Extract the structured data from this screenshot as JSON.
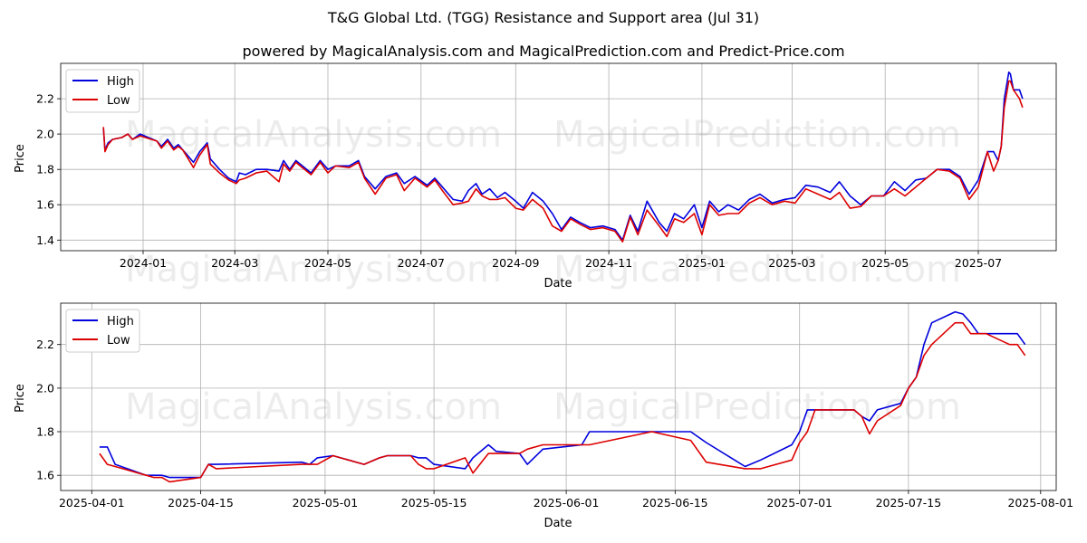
{
  "title": "T&G Global Ltd. (TGG) Resistance and Support area (Jul 31)",
  "subtitle": "powered by MagicalAnalysis.com and MagicalPrediction.com and Predict-Price.com",
  "watermarks": [
    "MagicalAnalysis.com",
    "MagicalPrediction.com"
  ],
  "colors": {
    "high": "#0000dd",
    "low": "#dd0000"
  },
  "chart_data": [
    {
      "type": "line",
      "xlabel": "Date",
      "ylabel": "Price",
      "xlim": [
        "2023-11-08",
        "2025-08-21"
      ],
      "ylim": [
        1.34,
        2.4
      ],
      "x_ticks": [
        "2024-01",
        "2024-03",
        "2024-05",
        "2024-07",
        "2024-09",
        "2024-11",
        "2025-01",
        "2025-03",
        "2025-05",
        "2025-07"
      ],
      "y_ticks": [
        1.4,
        1.6,
        1.8,
        2.0,
        2.2
      ],
      "legend": "top-left",
      "grid": true,
      "series": [
        {
          "name": "High",
          "x": [
            "2023-12-06",
            "2023-12-07",
            "2023-12-09",
            "2023-12-12",
            "2023-12-18",
            "2023-12-22",
            "2023-12-25",
            "2023-12-30",
            "2024-01-10",
            "2024-01-13",
            "2024-01-17",
            "2024-01-21",
            "2024-01-24",
            "2024-01-27",
            "2024-02-03",
            "2024-02-07",
            "2024-02-12",
            "2024-02-14",
            "2024-02-20",
            "2024-02-26",
            "2024-03-02",
            "2024-03-04",
            "2024-03-08",
            "2024-03-15",
            "2024-03-22",
            "2024-03-30",
            "2024-04-02",
            "2024-04-06",
            "2024-04-10",
            "2024-04-20",
            "2024-04-26",
            "2024-05-01",
            "2024-05-06",
            "2024-05-15",
            "2024-05-21",
            "2024-05-25",
            "2024-06-01",
            "2024-06-08",
            "2024-06-15",
            "2024-06-20",
            "2024-06-27",
            "2024-07-05",
            "2024-07-10",
            "2024-07-15",
            "2024-07-22",
            "2024-07-28",
            "2024-08-01",
            "2024-08-06",
            "2024-08-10",
            "2024-08-15",
            "2024-08-20",
            "2024-08-25",
            "2024-09-01",
            "2024-09-06",
            "2024-09-12",
            "2024-09-19",
            "2024-09-25",
            "2024-10-01",
            "2024-10-07",
            "2024-10-13",
            "2024-10-20",
            "2024-10-28",
            "2024-11-05",
            "2024-11-10",
            "2024-11-15",
            "2024-11-20",
            "2024-11-26",
            "2024-12-04",
            "2024-12-09",
            "2024-12-14",
            "2024-12-20",
            "2024-12-27",
            "2025-01-01",
            "2025-01-06",
            "2025-01-12",
            "2025-01-18",
            "2025-01-25",
            "2025-02-01",
            "2025-02-08",
            "2025-02-16",
            "2025-02-24",
            "2025-03-03",
            "2025-03-10",
            "2025-03-18",
            "2025-03-26",
            "2025-04-01",
            "2025-04-08",
            "2025-04-15",
            "2025-04-22",
            "2025-04-30",
            "2025-05-07",
            "2025-05-14",
            "2025-05-21",
            "2025-05-28",
            "2025-06-04",
            "2025-06-12",
            "2025-06-19",
            "2025-06-25",
            "2025-07-01",
            "2025-07-07",
            "2025-07-11",
            "2025-07-14",
            "2025-07-16",
            "2025-07-18",
            "2025-07-21",
            "2025-07-22",
            "2025-07-24",
            "2025-07-28",
            "2025-07-30"
          ],
          "values": [
            2.03,
            1.91,
            1.95,
            1.97,
            1.98,
            2.0,
            1.97,
            2.0,
            1.96,
            1.93,
            1.97,
            1.92,
            1.94,
            1.91,
            1.84,
            1.9,
            1.95,
            1.86,
            1.8,
            1.75,
            1.73,
            1.78,
            1.77,
            1.8,
            1.8,
            1.79,
            1.85,
            1.8,
            1.85,
            1.78,
            1.85,
            1.8,
            1.82,
            1.82,
            1.85,
            1.76,
            1.69,
            1.76,
            1.78,
            1.72,
            1.76,
            1.71,
            1.75,
            1.7,
            1.63,
            1.62,
            1.68,
            1.72,
            1.66,
            1.69,
            1.64,
            1.67,
            1.62,
            1.58,
            1.67,
            1.62,
            1.55,
            1.46,
            1.53,
            1.5,
            1.47,
            1.48,
            1.46,
            1.4,
            1.54,
            1.45,
            1.62,
            1.5,
            1.45,
            1.55,
            1.52,
            1.6,
            1.47,
            1.62,
            1.56,
            1.6,
            1.57,
            1.63,
            1.66,
            1.61,
            1.63,
            1.64,
            1.71,
            1.7,
            1.67,
            1.73,
            1.65,
            1.6,
            1.65,
            1.65,
            1.73,
            1.68,
            1.74,
            1.75,
            1.8,
            1.8,
            1.76,
            1.66,
            1.74,
            1.9,
            1.9,
            1.85,
            1.93,
            2.2,
            2.35,
            2.34,
            2.25,
            2.25,
            2.2
          ]
        },
        {
          "name": "Low",
          "x": [
            "2023-12-06",
            "2023-12-07",
            "2023-12-09",
            "2023-12-12",
            "2023-12-18",
            "2023-12-22",
            "2023-12-25",
            "2023-12-30",
            "2024-01-10",
            "2024-01-13",
            "2024-01-17",
            "2024-01-21",
            "2024-01-24",
            "2024-01-27",
            "2024-02-03",
            "2024-02-07",
            "2024-02-12",
            "2024-02-14",
            "2024-02-20",
            "2024-02-26",
            "2024-03-02",
            "2024-03-04",
            "2024-03-08",
            "2024-03-15",
            "2024-03-22",
            "2024-03-30",
            "2024-04-02",
            "2024-04-06",
            "2024-04-10",
            "2024-04-20",
            "2024-04-26",
            "2024-05-01",
            "2024-05-06",
            "2024-05-15",
            "2024-05-21",
            "2024-05-25",
            "2024-06-01",
            "2024-06-08",
            "2024-06-15",
            "2024-06-20",
            "2024-06-27",
            "2024-07-05",
            "2024-07-10",
            "2024-07-15",
            "2024-07-22",
            "2024-07-28",
            "2024-08-01",
            "2024-08-06",
            "2024-08-10",
            "2024-08-15",
            "2024-08-20",
            "2024-08-25",
            "2024-09-01",
            "2024-09-06",
            "2024-09-12",
            "2024-09-19",
            "2024-09-25",
            "2024-10-01",
            "2024-10-07",
            "2024-10-13",
            "2024-10-20",
            "2024-10-28",
            "2024-11-05",
            "2024-11-10",
            "2024-11-15",
            "2024-11-20",
            "2024-11-26",
            "2024-12-04",
            "2024-12-09",
            "2024-12-14",
            "2024-12-20",
            "2024-12-27",
            "2025-01-01",
            "2025-01-06",
            "2025-01-12",
            "2025-01-18",
            "2025-01-25",
            "2025-02-01",
            "2025-02-08",
            "2025-02-16",
            "2025-02-24",
            "2025-03-03",
            "2025-03-10",
            "2025-03-18",
            "2025-03-26",
            "2025-04-01",
            "2025-04-08",
            "2025-04-15",
            "2025-04-22",
            "2025-04-30",
            "2025-05-07",
            "2025-05-14",
            "2025-05-21",
            "2025-05-28",
            "2025-06-04",
            "2025-06-12",
            "2025-06-19",
            "2025-06-25",
            "2025-07-01",
            "2025-07-07",
            "2025-07-11",
            "2025-07-14",
            "2025-07-16",
            "2025-07-18",
            "2025-07-21",
            "2025-07-22",
            "2025-07-24",
            "2025-07-28",
            "2025-07-30"
          ],
          "values": [
            2.04,
            1.9,
            1.94,
            1.97,
            1.98,
            2.0,
            1.97,
            1.99,
            1.96,
            1.92,
            1.96,
            1.91,
            1.93,
            1.91,
            1.81,
            1.88,
            1.94,
            1.83,
            1.78,
            1.74,
            1.72,
            1.74,
            1.75,
            1.78,
            1.79,
            1.73,
            1.83,
            1.79,
            1.84,
            1.77,
            1.84,
            1.78,
            1.82,
            1.81,
            1.84,
            1.75,
            1.66,
            1.75,
            1.77,
            1.68,
            1.75,
            1.7,
            1.74,
            1.68,
            1.6,
            1.61,
            1.62,
            1.69,
            1.65,
            1.63,
            1.63,
            1.64,
            1.58,
            1.57,
            1.63,
            1.58,
            1.48,
            1.45,
            1.52,
            1.49,
            1.46,
            1.47,
            1.45,
            1.39,
            1.53,
            1.43,
            1.57,
            1.48,
            1.42,
            1.52,
            1.5,
            1.55,
            1.43,
            1.6,
            1.54,
            1.55,
            1.55,
            1.61,
            1.64,
            1.6,
            1.62,
            1.61,
            1.69,
            1.66,
            1.63,
            1.67,
            1.58,
            1.59,
            1.65,
            1.65,
            1.69,
            1.65,
            1.7,
            1.75,
            1.8,
            1.79,
            1.75,
            1.63,
            1.7,
            1.9,
            1.79,
            1.85,
            1.93,
            2.15,
            2.3,
            2.3,
            2.25,
            2.2,
            2.15
          ]
        }
      ]
    },
    {
      "type": "line",
      "xlabel": "Date",
      "ylabel": "Price",
      "xlim": [
        "2025-03-28",
        "2025-08-03"
      ],
      "ylim": [
        1.53,
        2.39
      ],
      "x_ticks": [
        "2025-04-01",
        "2025-04-15",
        "2025-05-01",
        "2025-05-15",
        "2025-06-01",
        "2025-06-15",
        "2025-07-01",
        "2025-07-15",
        "2025-08-01"
      ],
      "y_ticks": [
        1.6,
        1.8,
        2.0,
        2.2
      ],
      "legend": "top-left",
      "grid": true,
      "series": [
        {
          "name": "High",
          "x": [
            "2025-04-02",
            "2025-04-03",
            "2025-04-04",
            "2025-04-08",
            "2025-04-09",
            "2025-04-10",
            "2025-04-11",
            "2025-04-15",
            "2025-04-16",
            "2025-04-17",
            "2025-04-28",
            "2025-04-29",
            "2025-04-30",
            "2025-05-02",
            "2025-05-06",
            "2025-05-08",
            "2025-05-09",
            "2025-05-12",
            "2025-05-13",
            "2025-05-14",
            "2025-05-15",
            "2025-05-19",
            "2025-05-20",
            "2025-05-22",
            "2025-05-23",
            "2025-05-26",
            "2025-05-27",
            "2025-05-29",
            "2025-06-03",
            "2025-06-04",
            "2025-06-12",
            "2025-06-17",
            "2025-06-19",
            "2025-06-24",
            "2025-06-26",
            "2025-06-30",
            "2025-07-01",
            "2025-07-02",
            "2025-07-03",
            "2025-07-08",
            "2025-07-09",
            "2025-07-10",
            "2025-07-11",
            "2025-07-14",
            "2025-07-15",
            "2025-07-16",
            "2025-07-17",
            "2025-07-18",
            "2025-07-21",
            "2025-07-22",
            "2025-07-23",
            "2025-07-24",
            "2025-07-25",
            "2025-07-28",
            "2025-07-29",
            "2025-07-30"
          ],
          "values": [
            1.73,
            1.73,
            1.65,
            1.6,
            1.6,
            1.6,
            1.59,
            1.59,
            1.65,
            1.65,
            1.66,
            1.65,
            1.68,
            1.69,
            1.65,
            1.68,
            1.69,
            1.69,
            1.68,
            1.68,
            1.65,
            1.63,
            1.68,
            1.74,
            1.71,
            1.7,
            1.65,
            1.72,
            1.74,
            1.8,
            1.8,
            1.8,
            1.75,
            1.64,
            1.67,
            1.74,
            1.8,
            1.9,
            1.9,
            1.9,
            1.87,
            1.85,
            1.9,
            1.93,
            2.0,
            2.05,
            2.2,
            2.3,
            2.35,
            2.34,
            2.3,
            2.25,
            2.25,
            2.25,
            2.25,
            2.2
          ]
        },
        {
          "name": "Low",
          "x": [
            "2025-04-02",
            "2025-04-03",
            "2025-04-04",
            "2025-04-08",
            "2025-04-09",
            "2025-04-10",
            "2025-04-11",
            "2025-04-15",
            "2025-04-16",
            "2025-04-17",
            "2025-04-28",
            "2025-04-29",
            "2025-04-30",
            "2025-05-02",
            "2025-05-06",
            "2025-05-08",
            "2025-05-09",
            "2025-05-12",
            "2025-05-13",
            "2025-05-14",
            "2025-05-15",
            "2025-05-19",
            "2025-05-20",
            "2025-05-22",
            "2025-05-23",
            "2025-05-26",
            "2025-05-27",
            "2025-05-29",
            "2025-06-03",
            "2025-06-04",
            "2025-06-12",
            "2025-06-17",
            "2025-06-19",
            "2025-06-24",
            "2025-06-26",
            "2025-06-30",
            "2025-07-01",
            "2025-07-02",
            "2025-07-03",
            "2025-07-08",
            "2025-07-09",
            "2025-07-10",
            "2025-07-11",
            "2025-07-14",
            "2025-07-15",
            "2025-07-16",
            "2025-07-17",
            "2025-07-18",
            "2025-07-21",
            "2025-07-22",
            "2025-07-23",
            "2025-07-24",
            "2025-07-25",
            "2025-07-28",
            "2025-07-29",
            "2025-07-30"
          ],
          "values": [
            1.7,
            1.65,
            1.64,
            1.6,
            1.59,
            1.59,
            1.57,
            1.59,
            1.65,
            1.63,
            1.65,
            1.65,
            1.65,
            1.69,
            1.65,
            1.68,
            1.69,
            1.69,
            1.65,
            1.63,
            1.63,
            1.68,
            1.61,
            1.7,
            1.7,
            1.7,
            1.72,
            1.74,
            1.74,
            1.74,
            1.8,
            1.76,
            1.66,
            1.63,
            1.63,
            1.67,
            1.75,
            1.8,
            1.9,
            1.9,
            1.87,
            1.79,
            1.85,
            1.92,
            2.0,
            2.05,
            2.15,
            2.2,
            2.3,
            2.3,
            2.25,
            2.25,
            2.25,
            2.2,
            2.2,
            2.15
          ]
        }
      ]
    }
  ]
}
